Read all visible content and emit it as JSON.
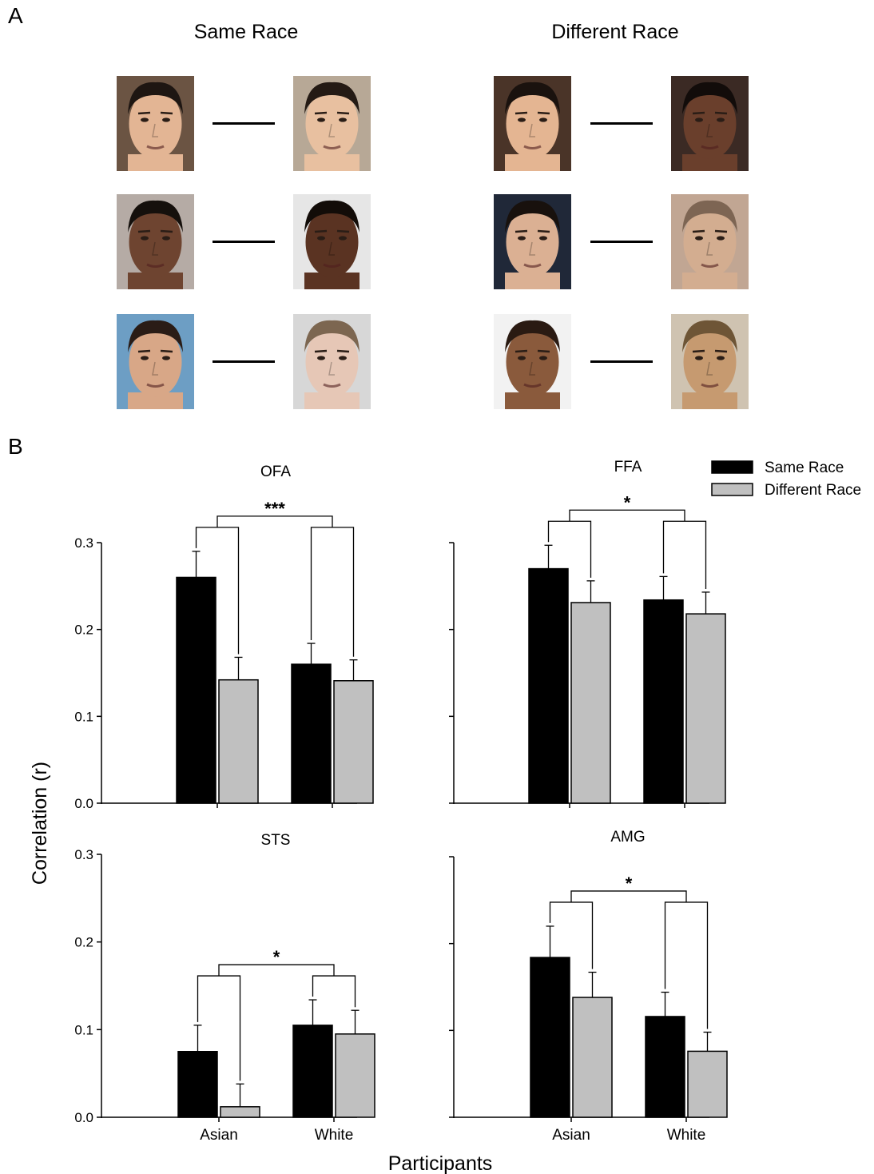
{
  "panel_a": {
    "letter": "A",
    "groups": [
      {
        "title": "Same Race",
        "pairs": [
          {
            "left": {
              "skin": "#e3b594",
              "hair": "#1e1612",
              "bg": "#6b5443"
            },
            "right": {
              "skin": "#e8c0a0",
              "hair": "#241a14",
              "bg": "#b7a896"
            }
          },
          {
            "left": {
              "skin": "#6e4430",
              "hair": "#15100c",
              "bg": "#b5aba5"
            },
            "right": {
              "skin": "#5a3322",
              "hair": "#120c08",
              "bg": "#e6e6e6"
            }
          },
          {
            "left": {
              "skin": "#d8a787",
              "hair": "#2a1c16",
              "bg": "#6d9ec4"
            },
            "right": {
              "skin": "#e6c7b6",
              "hair": "#7c6650",
              "bg": "#d7d7d7"
            }
          }
        ]
      },
      {
        "title": "Different Race",
        "pairs": [
          {
            "left": {
              "skin": "#e4b592",
              "hair": "#1a120e",
              "bg": "#4a3428"
            },
            "right": {
              "skin": "#6a3f2c",
              "hair": "#120c0a",
              "bg": "#3b2a24"
            }
          },
          {
            "left": {
              "skin": "#dbb093",
              "hair": "#18110d",
              "bg": "#202838"
            },
            "right": {
              "skin": "#d3ad90",
              "hair": "#7d6553",
              "bg": "#c1a693"
            }
          },
          {
            "left": {
              "skin": "#8a5a3c",
              "hair": "#2a1a12",
              "bg": "#f2f2f2"
            },
            "right": {
              "skin": "#c69a70",
              "hair": "#6e5536",
              "bg": "#cfc3b1"
            }
          }
        ]
      }
    ]
  },
  "panel_b": {
    "letter": "B",
    "ylabel": "Correlation (r)",
    "xlabel": "Participants"
  },
  "colors": {
    "same_race": "#000000",
    "different_race": "#c0c0c0"
  },
  "chart_data": [
    {
      "type": "bar",
      "title": "OFA",
      "categories": [
        "Asian",
        "White"
      ],
      "series": [
        {
          "name": "Same Race",
          "values": [
            0.26,
            0.16
          ],
          "errors": [
            0.03,
            0.024
          ]
        },
        {
          "name": "Different Race",
          "values": [
            0.142,
            0.141
          ],
          "errors": [
            0.026,
            0.024
          ]
        }
      ],
      "ylim": [
        0,
        0.3
      ],
      "yticks": [
        "0.0",
        "0.1",
        "0.2",
        "0.3"
      ],
      "show_yticks": true,
      "show_xticks": false,
      "significance": "***",
      "legend": null
    },
    {
      "type": "bar",
      "title": "FFA",
      "categories": [
        "Asian",
        "White"
      ],
      "series": [
        {
          "name": "Same Race",
          "values": [
            0.27,
            0.234
          ],
          "errors": [
            0.027,
            0.027
          ]
        },
        {
          "name": "Different Race",
          "values": [
            0.231,
            0.218
          ],
          "errors": [
            0.025,
            0.025
          ]
        }
      ],
      "ylim": [
        0,
        0.3
      ],
      "yticks": [
        "0.0",
        "0.1",
        "0.2",
        "0.3"
      ],
      "show_yticks": false,
      "show_xticks": false,
      "significance": "*",
      "legend": {
        "position": "top-right",
        "entries": [
          "Same Race",
          "Different Race"
        ]
      }
    },
    {
      "type": "bar",
      "title": "STS",
      "categories": [
        "Asian",
        "White"
      ],
      "series": [
        {
          "name": "Same Race",
          "values": [
            0.075,
            0.105
          ],
          "errors": [
            0.03,
            0.029
          ]
        },
        {
          "name": "Different Race",
          "values": [
            0.012,
            0.095
          ],
          "errors": [
            0.026,
            0.027
          ]
        }
      ],
      "ylim": [
        0,
        0.3
      ],
      "yticks": [
        "0.0",
        "0.1",
        "0.2",
        "0.3"
      ],
      "show_yticks": true,
      "show_xticks": true,
      "significance": "*",
      "legend": null
    },
    {
      "type": "bar",
      "title": "AMG",
      "categories": [
        "Asian",
        "White"
      ],
      "series": [
        {
          "name": "Same Race",
          "values": [
            0.184,
            0.116
          ],
          "errors": [
            0.036,
            0.028
          ]
        },
        {
          "name": "Different Race",
          "values": [
            0.138,
            0.076
          ],
          "errors": [
            0.029,
            0.022
          ]
        }
      ],
      "ylim": [
        0,
        0.3
      ],
      "yticks": [
        "0.0",
        "0.1",
        "0.2",
        "0.3"
      ],
      "show_yticks": false,
      "show_xticks": true,
      "significance": "*",
      "legend": null
    }
  ]
}
